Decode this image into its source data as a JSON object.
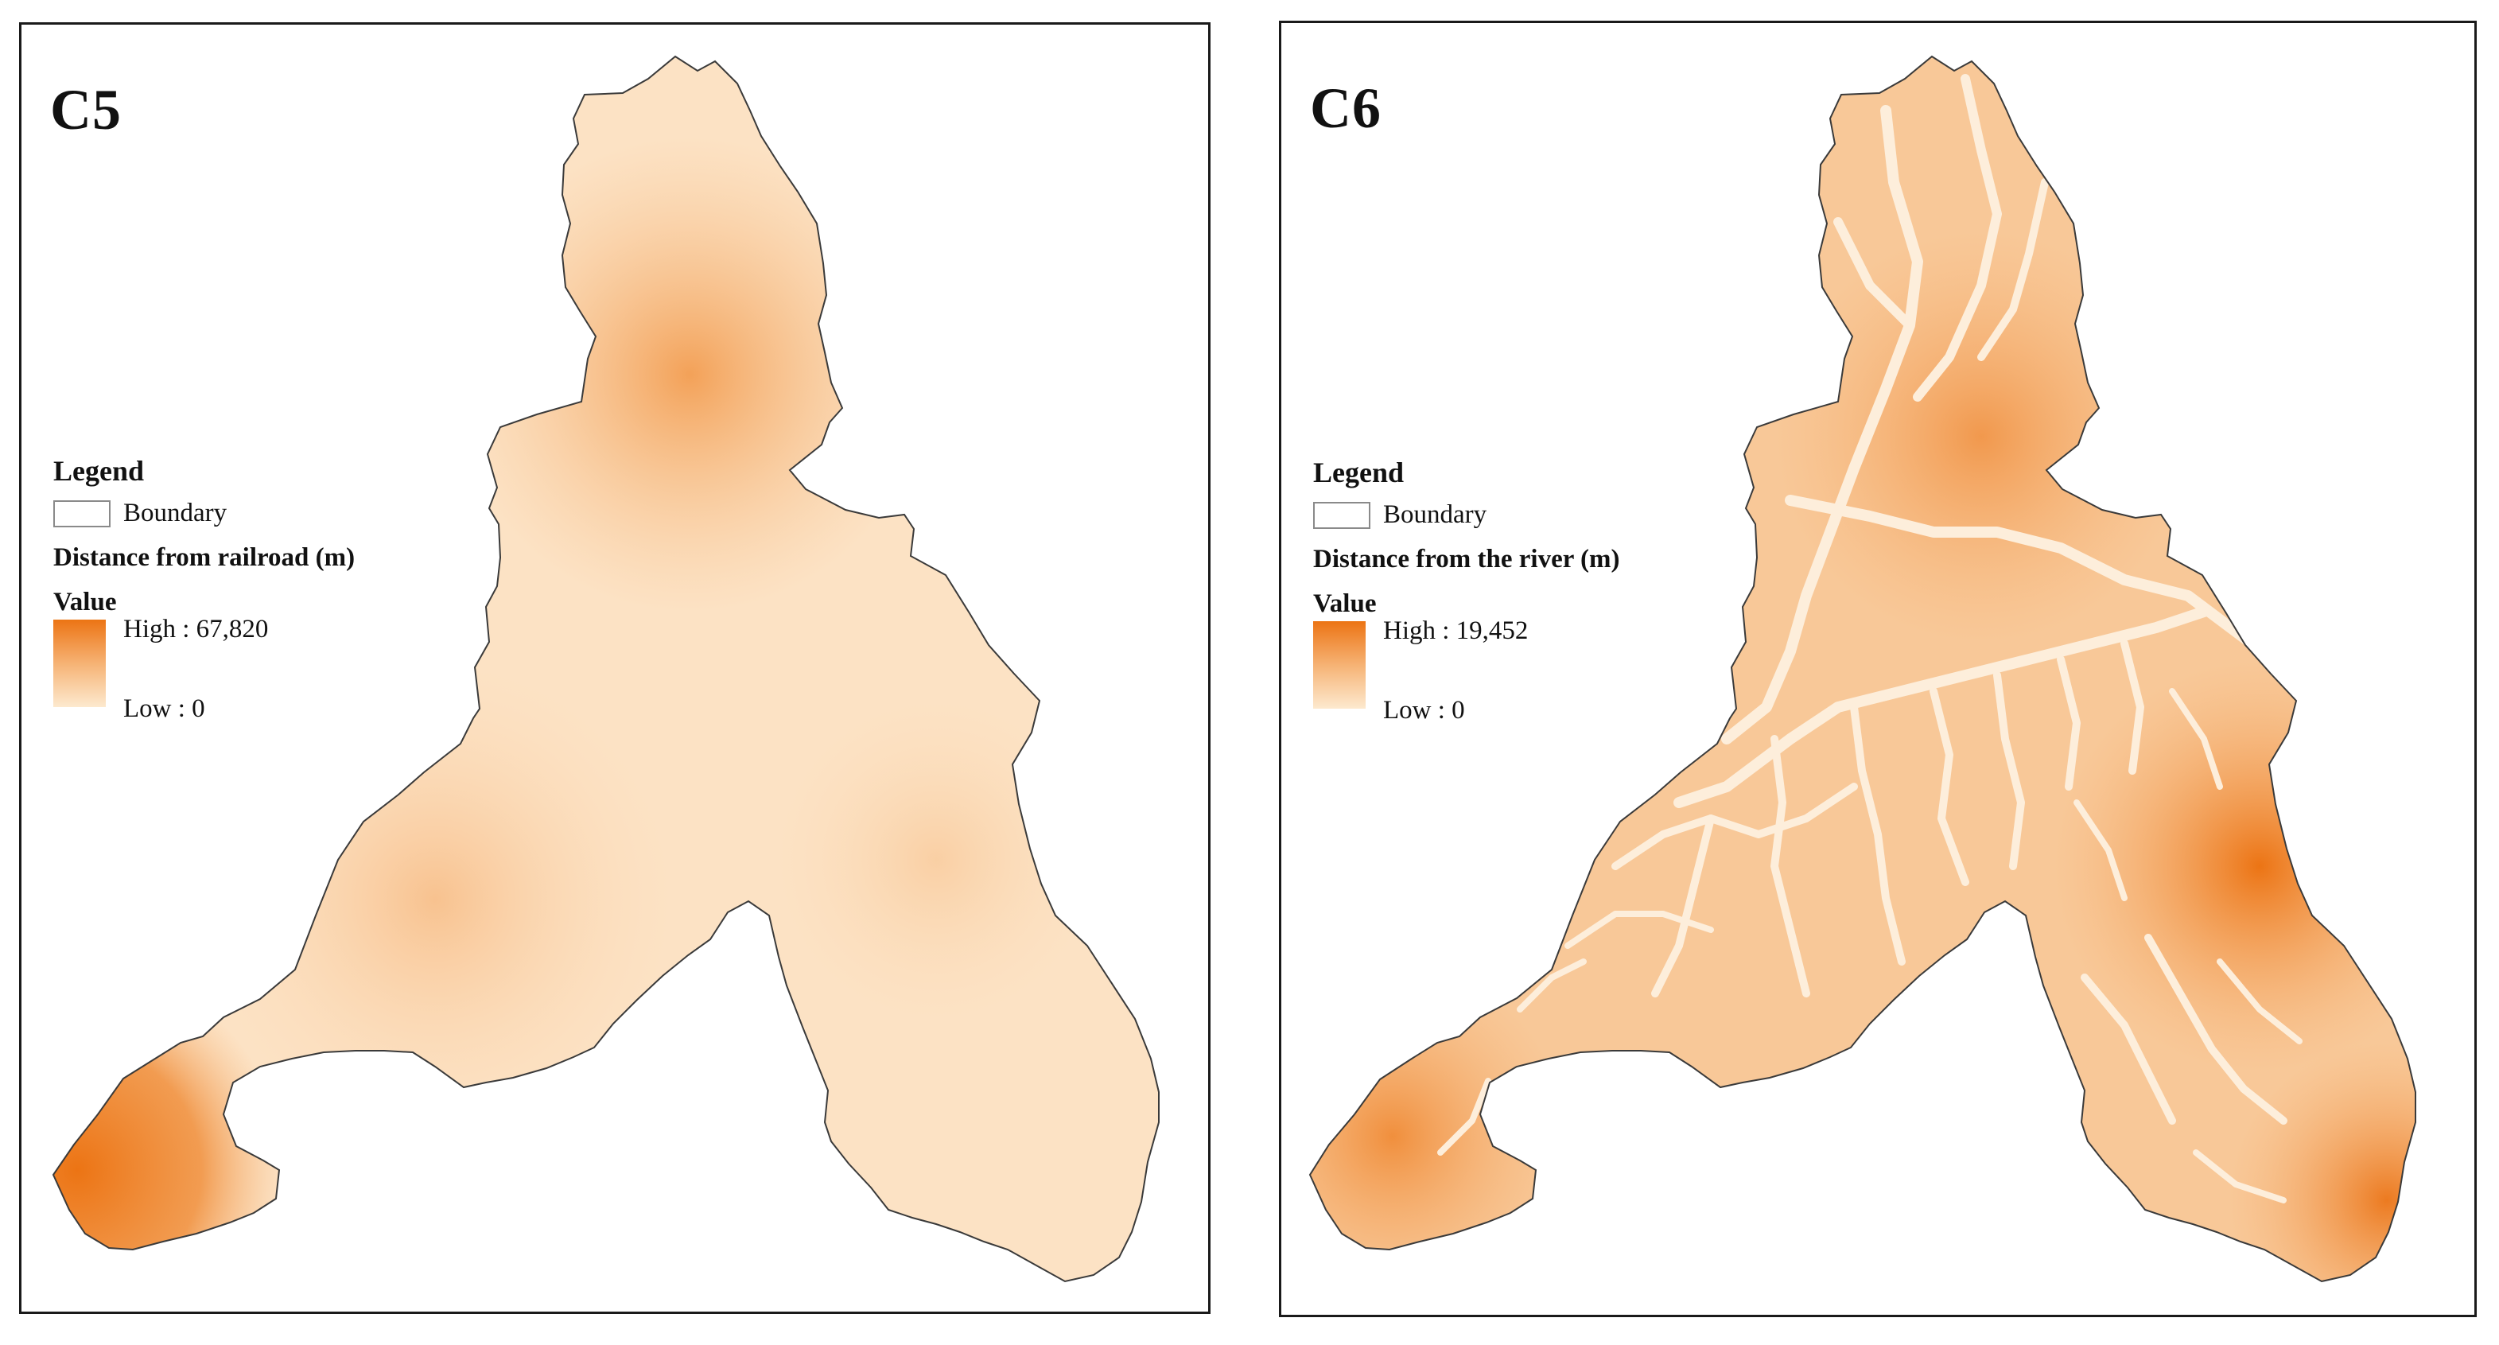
{
  "panels": [
    {
      "label": "C5",
      "legend": {
        "title": "Legend",
        "boundary": "Boundary",
        "layer": "Distance from railroad (m)",
        "value_heading": "Value",
        "high": "High : 67,820",
        "low": "Low : 0"
      }
    },
    {
      "label": "C6",
      "legend": {
        "title": "Legend",
        "boundary": "Boundary",
        "layer": "Distance from the river (m)",
        "value_heading": "Value",
        "high": "High : 19,452",
        "low": "Low : 0"
      }
    }
  ],
  "colors": {
    "high": "#ec7414",
    "mid": "#f6b274",
    "low": "#fde9cf",
    "boundary": "#3a3a3a",
    "frame": "#1a1a1a"
  }
}
